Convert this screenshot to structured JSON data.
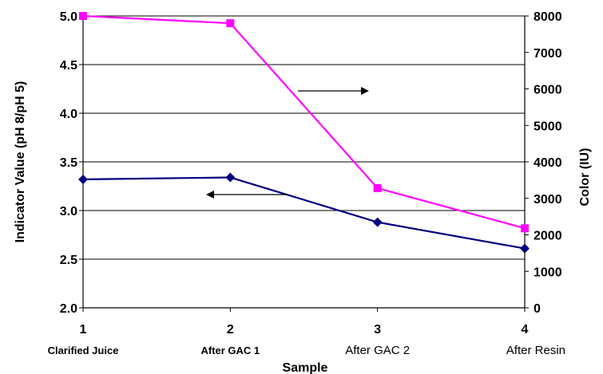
{
  "chart_data": {
    "type": "line",
    "title": "",
    "xlabel": "Sample",
    "ylabel": "Indicator Value (pH 8/pH 5)",
    "y2label": "Color (IU)",
    "x": [
      1,
      2,
      3,
      4
    ],
    "categories": [
      "Clarified Juice",
      "After GAC 1",
      "After GAC 2",
      "After Resin"
    ],
    "ylim": [
      2.0,
      5.0
    ],
    "y2lim": [
      0,
      8000
    ],
    "yticks": [
      "2.0",
      "2.5",
      "3.0",
      "3.5",
      "4.0",
      "4.5",
      "5.0"
    ],
    "y2ticks": [
      "0",
      "1000",
      "2000",
      "3000",
      "4000",
      "5000",
      "6000",
      "7000",
      "8000"
    ],
    "grid": true,
    "series": [
      {
        "axis": "left",
        "marker": "diamond",
        "color": "#000080",
        "values": [
          3.32,
          3.34,
          2.88,
          2.61
        ]
      },
      {
        "axis": "right",
        "marker": "square",
        "color": "#ff00ff",
        "values": [
          8000,
          7800,
          3280,
          2180
        ]
      }
    ],
    "annotations": [
      {
        "type": "arrow",
        "direction": "right",
        "points_to": "right-axis"
      },
      {
        "type": "arrow",
        "direction": "left",
        "points_to": "left-axis"
      }
    ]
  }
}
